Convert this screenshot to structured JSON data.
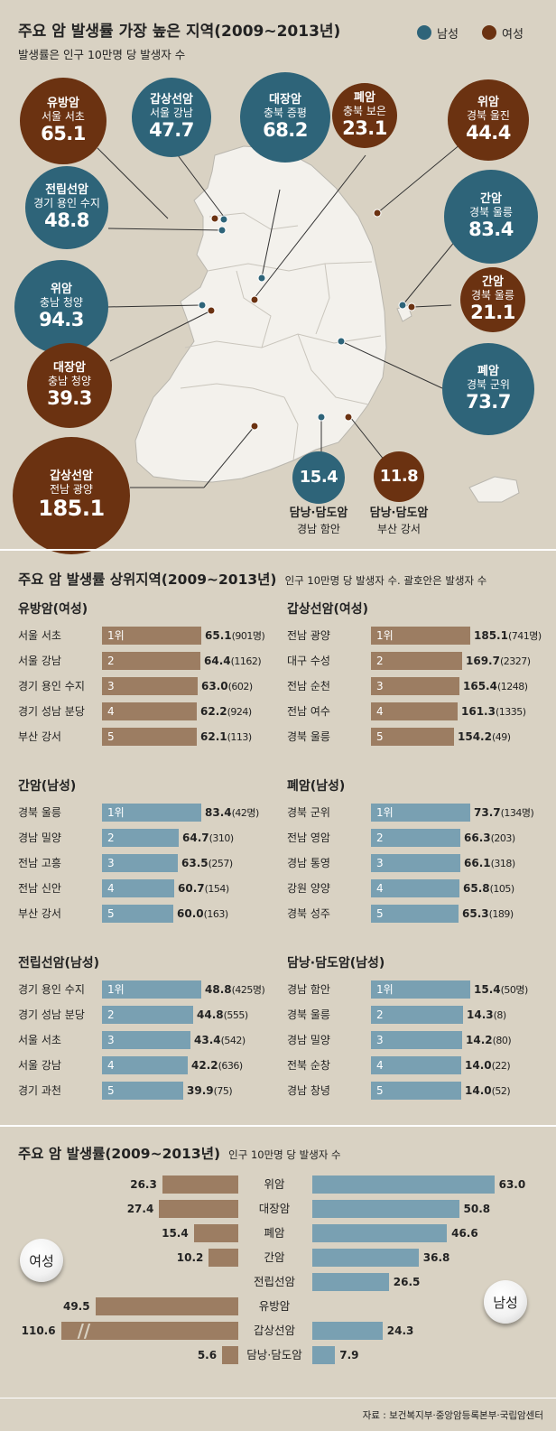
{
  "map_section": {
    "title": "주요 암 발생률 가장 높은 지역(2009~2013년)",
    "subtitle": "발생률은 인구 10만명 당 발생자 수",
    "legend": [
      {
        "label": "남성",
        "color": "#2e6479"
      },
      {
        "label": "여성",
        "color": "#6b3211"
      }
    ],
    "bubbles": [
      {
        "cancer": "유방암",
        "region": "서울 서초",
        "value": "65.1",
        "gender": "female"
      },
      {
        "cancer": "갑상선암",
        "region": "서울 강남",
        "value": "47.7",
        "gender": "male"
      },
      {
        "cancer": "대장암",
        "region": "충북 증평",
        "value": "68.2",
        "gender": "male"
      },
      {
        "cancer": "폐암",
        "region": "충북 보은",
        "value": "23.1",
        "gender": "female"
      },
      {
        "cancer": "위암",
        "region": "경북 울진",
        "value": "44.4",
        "gender": "female"
      },
      {
        "cancer": "전립선암",
        "region": "경기 용인 수지",
        "value": "48.8",
        "gender": "male"
      },
      {
        "cancer": "간암",
        "region": "경북 울릉",
        "value": "83.4",
        "gender": "male"
      },
      {
        "cancer": "위암",
        "region": "충남 청양",
        "value": "94.3",
        "gender": "male"
      },
      {
        "cancer": "간암",
        "region": "경북 울릉",
        "value": "21.1",
        "gender": "female"
      },
      {
        "cancer": "대장암",
        "region": "충남 청양",
        "value": "39.3",
        "gender": "female"
      },
      {
        "cancer": "폐암",
        "region": "경북 군위",
        "value": "73.7",
        "gender": "male"
      },
      {
        "cancer": "갑상선암",
        "region": "전남 광양",
        "value": "185.1",
        "gender": "female"
      },
      {
        "cancer": "담낭·담도암",
        "region": "경남 함안",
        "value": "15.4",
        "gender": "male"
      },
      {
        "cancer": "담낭·담도암",
        "region": "부산 강서",
        "value": "11.8",
        "gender": "female"
      }
    ]
  },
  "ranking_section": {
    "title": "주요 암 발생률 상위지역(2009~2013년)",
    "note": "인구 10만명 당 발생자 수. 괄호안은 발생자 수"
  },
  "comparison_section": {
    "title": "주요 암 발생률(2009~2013년)",
    "note": "인구 10만명 당 발생자 수",
    "female_label": "여성",
    "male_label": "남성",
    "break_marker": "//"
  },
  "source": "자료 : 보건복지부·중앙암등록본부·국립암센터",
  "chart_data": [
    {
      "type": "bar",
      "title": "유방암(여성)",
      "color": "#9c7d62",
      "rank_label_first": "1위",
      "categories": [
        "서울 서초",
        "서울 강남",
        "경기 용인 수지",
        "경기 성남 분당",
        "부산 강서"
      ],
      "values": [
        65.1,
        64.4,
        63.0,
        62.2,
        62.1
      ],
      "value_labels": [
        "65.1",
        "64.4",
        "63.0",
        "62.2",
        "62.1"
      ],
      "counts": [
        "(901명)",
        "(1162)",
        "(602)",
        "(924)",
        "(113)"
      ]
    },
    {
      "type": "bar",
      "title": "갑상선암(여성)",
      "color": "#9c7d62",
      "rank_label_first": "1위",
      "categories": [
        "전남 광양",
        "대구 수성",
        "전남 순천",
        "전남 여수",
        "경북 울릉"
      ],
      "values": [
        185.1,
        169.7,
        165.4,
        161.3,
        154.2
      ],
      "value_labels": [
        "185.1",
        "169.7",
        "165.4",
        "161.3",
        "154.2"
      ],
      "counts": [
        "(741명)",
        "(2327)",
        "(1248)",
        "(1335)",
        "(49)"
      ]
    },
    {
      "type": "bar",
      "title": "간암(남성)",
      "color": "#79a0b2",
      "rank_label_first": "1위",
      "categories": [
        "경북 울릉",
        "경남 밀양",
        "전남 고흥",
        "전남 신안",
        "부산 강서"
      ],
      "values": [
        83.4,
        64.7,
        63.5,
        60.7,
        60.0
      ],
      "value_labels": [
        "83.4",
        "64.7",
        "63.5",
        "60.7",
        "60.0"
      ],
      "counts": [
        "(42명)",
        "(310)",
        "(257)",
        "(154)",
        "(163)"
      ]
    },
    {
      "type": "bar",
      "title": "폐암(남성)",
      "color": "#79a0b2",
      "rank_label_first": "1위",
      "categories": [
        "경북 군위",
        "전남 영암",
        "경남 통영",
        "강원 양양",
        "경북 성주"
      ],
      "values": [
        73.7,
        66.3,
        66.1,
        65.8,
        65.3
      ],
      "value_labels": [
        "73.7",
        "66.3",
        "66.1",
        "65.8",
        "65.3"
      ],
      "counts": [
        "(134명)",
        "(203)",
        "(318)",
        "(105)",
        "(189)"
      ]
    },
    {
      "type": "bar",
      "title": "전립선암(남성)",
      "color": "#79a0b2",
      "rank_label_first": "1위",
      "categories": [
        "경기 용인 수지",
        "경기 성남 분당",
        "서울 서초",
        "서울 강남",
        "경기 과천"
      ],
      "values": [
        48.8,
        44.8,
        43.4,
        42.2,
        39.9
      ],
      "value_labels": [
        "48.8",
        "44.8",
        "43.4",
        "42.2",
        "39.9"
      ],
      "counts": [
        "(425명)",
        "(555)",
        "(542)",
        "(636)",
        "(75)"
      ]
    },
    {
      "type": "bar",
      "title": "담낭·담도암(남성)",
      "color": "#79a0b2",
      "rank_label_first": "1위",
      "categories": [
        "경남 함안",
        "경북 울릉",
        "경남 밀양",
        "전북 순창",
        "경남 창녕"
      ],
      "values": [
        15.4,
        14.3,
        14.2,
        14.0,
        14.0
      ],
      "value_labels": [
        "15.4",
        "14.3",
        "14.2",
        "14.0",
        "14.0"
      ],
      "counts": [
        "(50명)",
        "(8)",
        "(80)",
        "(22)",
        "(52)"
      ]
    },
    {
      "type": "bar",
      "title": "주요 암 발생률(2009~2013년)",
      "categories": [
        "위암",
        "대장암",
        "폐암",
        "간암",
        "전립선암",
        "유방암",
        "갑상선암",
        "담낭·담도암"
      ],
      "series": [
        {
          "name": "여성",
          "color": "#9c7d62",
          "values": [
            26.3,
            27.4,
            15.4,
            10.2,
            null,
            49.5,
            110.6,
            5.6
          ],
          "value_labels": [
            "26.3",
            "27.4",
            "15.4",
            "10.2",
            "",
            "49.5",
            "110.6",
            "5.6"
          ]
        },
        {
          "name": "남성",
          "color": "#79a0b2",
          "values": [
            63.0,
            50.8,
            46.6,
            36.8,
            26.5,
            null,
            24.3,
            7.9
          ],
          "value_labels": [
            "63.0",
            "50.8",
            "46.6",
            "36.8",
            "26.5",
            "",
            "24.3",
            "7.9"
          ]
        }
      ],
      "axis_break": true
    }
  ]
}
